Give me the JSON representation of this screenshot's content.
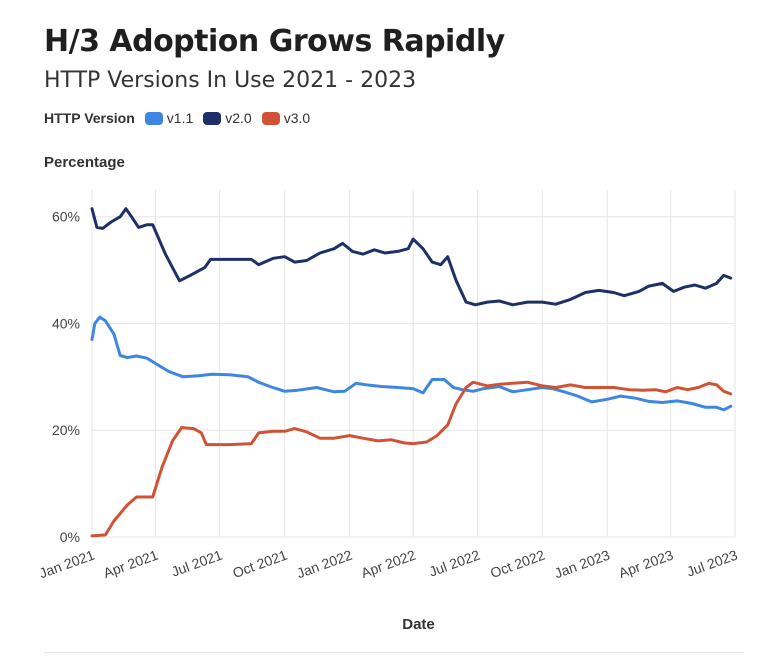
{
  "title": "H/3 Adoption Grows Rapidly",
  "subtitle": "HTTP Versions In Use 2021 - 2023",
  "legend_title": "HTTP Version",
  "colors": {
    "v1.1": "#3f86e3",
    "v2.0": "#1f2f68",
    "v3.0": "#cf5334",
    "grid": "#e6e6e6"
  },
  "chart_data": {
    "type": "line",
    "xlabel": "Date",
    "ylabel": "Percentage",
    "x_ticks": [
      "Jan 2021",
      "Apr 2021",
      "Jul 2021",
      "Oct 2021",
      "Jan 2022",
      "Apr 2022",
      "Jul 2022",
      "Oct 2022",
      "Jan 2023",
      "Apr 2023",
      "Jul 2023"
    ],
    "x_tick_dates": [
      "2021-01-01",
      "2021-04-01",
      "2021-07-01",
      "2021-10-01",
      "2022-01-01",
      "2022-04-01",
      "2022-07-01",
      "2022-10-01",
      "2023-01-01",
      "2023-04-01",
      "2023-07-01"
    ],
    "xlim": [
      "2021-01-01",
      "2023-07-01"
    ],
    "y_ticks": [
      "0%",
      "20%",
      "40%",
      "60%"
    ],
    "ylim": [
      0,
      65
    ],
    "grid": true,
    "legend_position": "top-left",
    "series": [
      {
        "name": "v1.1",
        "points": [
          [
            "2021-01-01",
            37
          ],
          [
            "2021-01-05",
            40
          ],
          [
            "2021-01-12",
            41.2
          ],
          [
            "2021-01-20",
            40.5
          ],
          [
            "2021-02-01",
            38
          ],
          [
            "2021-02-10",
            34
          ],
          [
            "2021-02-20",
            33.6
          ],
          [
            "2021-03-05",
            33.9
          ],
          [
            "2021-03-20",
            33.5
          ],
          [
            "2021-04-01",
            32.5
          ],
          [
            "2021-04-20",
            31
          ],
          [
            "2021-05-10",
            30
          ],
          [
            "2021-06-01",
            30.2
          ],
          [
            "2021-06-20",
            30.5
          ],
          [
            "2021-07-15",
            30.4
          ],
          [
            "2021-08-10",
            30
          ],
          [
            "2021-08-25",
            29
          ],
          [
            "2021-09-10",
            28.2
          ],
          [
            "2021-10-01",
            27.3
          ],
          [
            "2021-10-20",
            27.5
          ],
          [
            "2021-11-15",
            28
          ],
          [
            "2021-12-10",
            27.2
          ],
          [
            "2021-12-25",
            27.3
          ],
          [
            "2022-01-10",
            28.8
          ],
          [
            "2022-01-25",
            28.5
          ],
          [
            "2022-02-15",
            28.2
          ],
          [
            "2022-03-10",
            28
          ],
          [
            "2022-04-01",
            27.8
          ],
          [
            "2022-04-15",
            27
          ],
          [
            "2022-04-28",
            29.5
          ],
          [
            "2022-05-15",
            29.5
          ],
          [
            "2022-05-28",
            28
          ],
          [
            "2022-06-10",
            27.6
          ],
          [
            "2022-06-25",
            27.3
          ],
          [
            "2022-07-10",
            27.8
          ],
          [
            "2022-08-01",
            28.2
          ],
          [
            "2022-08-20",
            27.2
          ],
          [
            "2022-09-10",
            27.6
          ],
          [
            "2022-10-01",
            28
          ],
          [
            "2022-10-15",
            27.8
          ],
          [
            "2022-11-01",
            27.2
          ],
          [
            "2022-11-20",
            26.4
          ],
          [
            "2022-12-10",
            25.3
          ],
          [
            "2023-01-01",
            25.8
          ],
          [
            "2023-01-20",
            26.4
          ],
          [
            "2023-02-10",
            26
          ],
          [
            "2023-03-01",
            25.4
          ],
          [
            "2023-03-20",
            25.2
          ],
          [
            "2023-04-10",
            25.5
          ],
          [
            "2023-05-01",
            25
          ],
          [
            "2023-05-20",
            24.3
          ],
          [
            "2023-06-05",
            24.3
          ],
          [
            "2023-06-15",
            23.8
          ],
          [
            "2023-06-25",
            24.5
          ]
        ]
      },
      {
        "name": "v2.0",
        "points": [
          [
            "2021-01-01",
            61.5
          ],
          [
            "2021-01-08",
            58
          ],
          [
            "2021-01-16",
            57.8
          ],
          [
            "2021-01-28",
            59
          ],
          [
            "2021-02-10",
            60
          ],
          [
            "2021-02-18",
            61.5
          ],
          [
            "2021-02-26",
            60
          ],
          [
            "2021-03-08",
            58
          ],
          [
            "2021-03-20",
            58.5
          ],
          [
            "2021-03-28",
            58.5
          ],
          [
            "2021-04-15",
            53
          ],
          [
            "2021-05-05",
            48
          ],
          [
            "2021-05-20",
            49
          ],
          [
            "2021-06-10",
            50.5
          ],
          [
            "2021-06-18",
            52
          ],
          [
            "2021-07-15",
            52
          ],
          [
            "2021-08-15",
            52
          ],
          [
            "2021-08-25",
            51
          ],
          [
            "2021-09-15",
            52.2
          ],
          [
            "2021-10-01",
            52.5
          ],
          [
            "2021-10-15",
            51.5
          ],
          [
            "2021-11-01",
            51.8
          ],
          [
            "2021-11-20",
            53.2
          ],
          [
            "2021-12-10",
            54
          ],
          [
            "2021-12-22",
            55
          ],
          [
            "2022-01-05",
            53.5
          ],
          [
            "2022-01-20",
            53
          ],
          [
            "2022-02-05",
            53.8
          ],
          [
            "2022-02-20",
            53.2
          ],
          [
            "2022-03-10",
            53.5
          ],
          [
            "2022-03-25",
            54
          ],
          [
            "2022-04-01",
            55.8
          ],
          [
            "2022-04-15",
            54
          ],
          [
            "2022-04-28",
            51.5
          ],
          [
            "2022-05-10",
            51
          ],
          [
            "2022-05-20",
            52.5
          ],
          [
            "2022-06-01",
            48
          ],
          [
            "2022-06-15",
            44
          ],
          [
            "2022-06-28",
            43.5
          ],
          [
            "2022-07-15",
            44
          ],
          [
            "2022-08-01",
            44.2
          ],
          [
            "2022-08-20",
            43.5
          ],
          [
            "2022-09-10",
            44
          ],
          [
            "2022-10-01",
            44
          ],
          [
            "2022-10-20",
            43.6
          ],
          [
            "2022-11-10",
            44.5
          ],
          [
            "2022-12-01",
            45.8
          ],
          [
            "2022-12-20",
            46.2
          ],
          [
            "2023-01-10",
            45.8
          ],
          [
            "2023-01-25",
            45.2
          ],
          [
            "2023-02-15",
            46
          ],
          [
            "2023-03-01",
            47
          ],
          [
            "2023-03-20",
            47.5
          ],
          [
            "2023-04-05",
            46
          ],
          [
            "2023-04-20",
            46.8
          ],
          [
            "2023-05-05",
            47.2
          ],
          [
            "2023-05-20",
            46.6
          ],
          [
            "2023-06-05",
            47.5
          ],
          [
            "2023-06-15",
            49
          ],
          [
            "2023-06-25",
            48.5
          ]
        ]
      },
      {
        "name": "v3.0",
        "points": [
          [
            "2021-01-01",
            0.2
          ],
          [
            "2021-01-20",
            0.4
          ],
          [
            "2021-02-01",
            3
          ],
          [
            "2021-02-20",
            6
          ],
          [
            "2021-03-05",
            7.5
          ],
          [
            "2021-03-15",
            7.5
          ],
          [
            "2021-03-28",
            7.5
          ],
          [
            "2021-04-10",
            13
          ],
          [
            "2021-04-25",
            18
          ],
          [
            "2021-05-08",
            20.5
          ],
          [
            "2021-05-25",
            20.3
          ],
          [
            "2021-06-05",
            19.5
          ],
          [
            "2021-06-12",
            17.3
          ],
          [
            "2021-07-15",
            17.3
          ],
          [
            "2021-08-15",
            17.5
          ],
          [
            "2021-08-25",
            19.5
          ],
          [
            "2021-09-15",
            19.8
          ],
          [
            "2021-10-01",
            19.8
          ],
          [
            "2021-10-15",
            20.3
          ],
          [
            "2021-11-01",
            19.7
          ],
          [
            "2021-11-20",
            18.5
          ],
          [
            "2021-12-10",
            18.5
          ],
          [
            "2022-01-01",
            19
          ],
          [
            "2022-01-20",
            18.5
          ],
          [
            "2022-02-10",
            18
          ],
          [
            "2022-03-01",
            18.2
          ],
          [
            "2022-03-20",
            17.6
          ],
          [
            "2022-04-01",
            17.5
          ],
          [
            "2022-04-20",
            17.8
          ],
          [
            "2022-05-05",
            19
          ],
          [
            "2022-05-20",
            21
          ],
          [
            "2022-06-01",
            25
          ],
          [
            "2022-06-15",
            28
          ],
          [
            "2022-06-25",
            29
          ],
          [
            "2022-07-15",
            28.3
          ],
          [
            "2022-08-01",
            28.6
          ],
          [
            "2022-08-20",
            28.8
          ],
          [
            "2022-09-10",
            29
          ],
          [
            "2022-10-01",
            28.3
          ],
          [
            "2022-10-20",
            28
          ],
          [
            "2022-11-10",
            28.5
          ],
          [
            "2022-12-01",
            28
          ],
          [
            "2022-12-20",
            28
          ],
          [
            "2023-01-10",
            28
          ],
          [
            "2023-02-01",
            27.6
          ],
          [
            "2023-02-20",
            27.5
          ],
          [
            "2023-03-10",
            27.6
          ],
          [
            "2023-03-25",
            27.2
          ],
          [
            "2023-04-10",
            28
          ],
          [
            "2023-04-25",
            27.6
          ],
          [
            "2023-05-10",
            28
          ],
          [
            "2023-05-25",
            28.8
          ],
          [
            "2023-06-05",
            28.5
          ],
          [
            "2023-06-15",
            27.3
          ],
          [
            "2023-06-25",
            26.8
          ]
        ]
      }
    ]
  }
}
